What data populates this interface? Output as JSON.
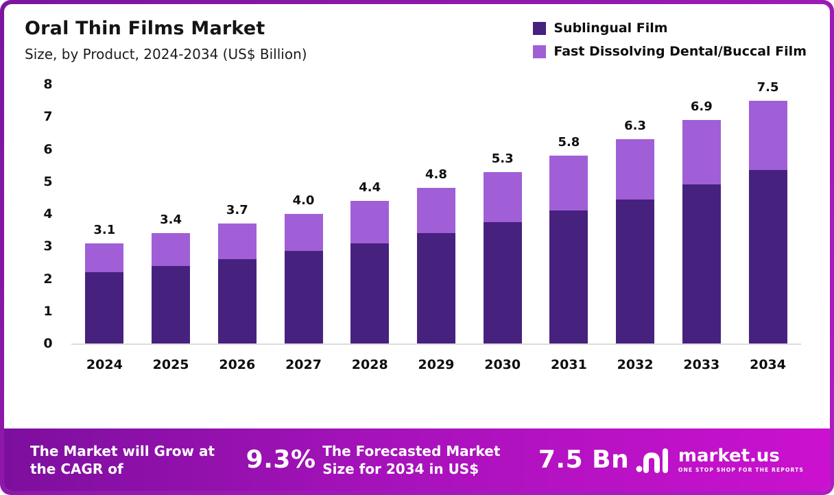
{
  "header": {
    "title": "Oral Thin Films Market",
    "subtitle": "Size, by Product, 2024-2034 (US$ Billion)"
  },
  "legend": [
    {
      "label": "Sublingual Film",
      "color": "#46217e"
    },
    {
      "label": "Fast Dissolving Dental/Buccal Film",
      "color": "#a05fd6"
    }
  ],
  "chart_data": {
    "type": "bar",
    "stacked": true,
    "title": "Oral Thin Films Market Size, by Product, 2024-2034 (US$ Billion)",
    "categories": [
      "2024",
      "2025",
      "2026",
      "2027",
      "2028",
      "2029",
      "2030",
      "2031",
      "2032",
      "2033",
      "2034"
    ],
    "series": [
      {
        "name": "Sublingual Film",
        "color": "#46217e",
        "values": [
          2.2,
          2.4,
          2.6,
          2.85,
          3.1,
          3.4,
          3.75,
          4.1,
          4.45,
          4.9,
          5.35
        ]
      },
      {
        "name": "Fast Dissolving Dental/Buccal Film",
        "color": "#a05fd6",
        "values": [
          0.9,
          1.0,
          1.1,
          1.15,
          1.3,
          1.4,
          1.55,
          1.7,
          1.85,
          2.0,
          2.15
        ]
      }
    ],
    "totals": [
      3.1,
      3.4,
      3.7,
      4.0,
      4.4,
      4.8,
      5.3,
      5.8,
      6.3,
      6.9,
      7.5
    ],
    "total_labels": [
      "3.1",
      "3.4",
      "3.7",
      "4.0",
      "4.4",
      "4.8",
      "5.3",
      "5.8",
      "6.3",
      "6.9",
      "7.5"
    ],
    "xlabel": "",
    "ylabel": "",
    "ylim": [
      0,
      8
    ],
    "yticks": [
      0,
      1,
      2,
      3,
      4,
      5,
      6,
      7,
      8
    ],
    "grid": false,
    "legend_position": "top-right"
  },
  "footer": {
    "cagr_text": "The Market will Grow at the CAGR of",
    "cagr_value": "9.3%",
    "forecast_text": "The Forecasted Market Size for 2034 in US$",
    "forecast_value": "7.5 Bn",
    "brand": "market.us",
    "brand_tagline": "One Stop Shop For The Reports"
  }
}
